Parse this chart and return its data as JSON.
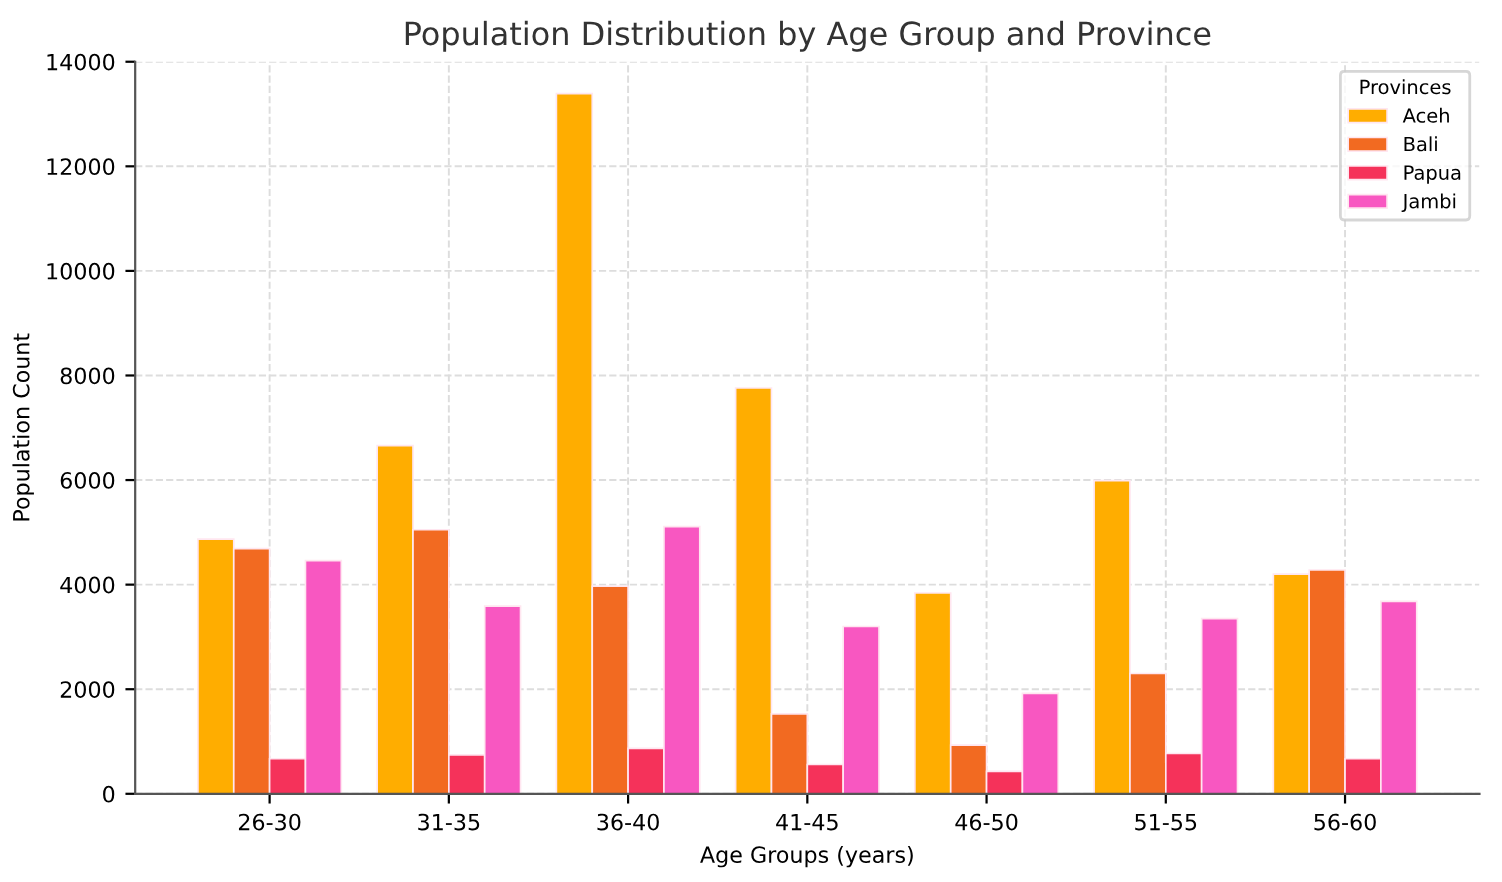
{
  "chart_data": {
    "type": "bar",
    "title": "Population Distribution by Age Group and Province",
    "xlabel": "Age Groups (years)",
    "ylabel": "Population Count",
    "legend_title": "Provinces",
    "categories": [
      "26-30",
      "31-35",
      "36-40",
      "41-45",
      "46-50",
      "51-55",
      "56-60"
    ],
    "series": [
      {
        "name": "Aceh",
        "color": "#ffad00",
        "values": [
          4870,
          6660,
          13390,
          7760,
          3840,
          5990,
          4200
        ]
      },
      {
        "name": "Bali",
        "color": "#f26a21",
        "values": [
          4690,
          5050,
          3970,
          1530,
          930,
          2300,
          4280
        ]
      },
      {
        "name": "Papua",
        "color": "#f5325a",
        "values": [
          670,
          745,
          870,
          560,
          430,
          770,
          670
        ]
      },
      {
        "name": "Jambi",
        "color": "#f857c1",
        "values": [
          4460,
          3590,
          5110,
          3200,
          1920,
          3350,
          3680
        ]
      }
    ],
    "ylim": [
      0,
      14000
    ],
    "yticks": [
      0,
      2000,
      4000,
      6000,
      8000,
      10000,
      12000,
      14000
    ],
    "grid": true,
    "legend": "top right"
  }
}
